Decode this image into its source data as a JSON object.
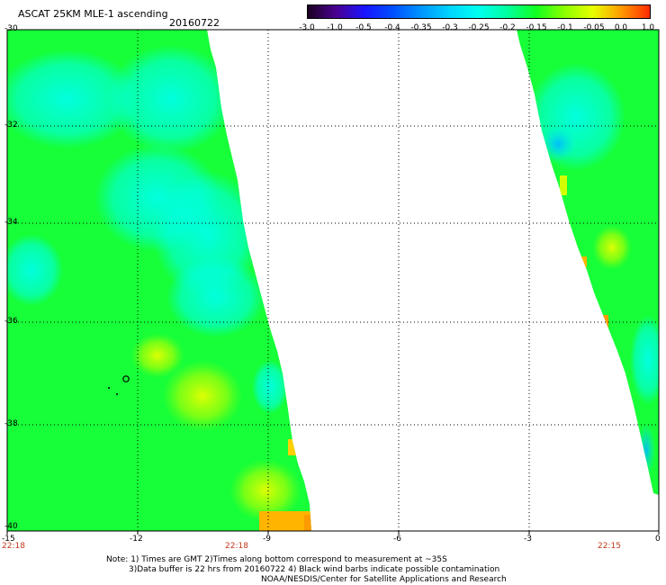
{
  "header": {
    "title": "ASCAT 25KM MLE-1 ascending",
    "date": "20160722"
  },
  "colorbar": {
    "tick_labels": [
      "-3.0",
      "-1.0",
      "-0.5",
      "-0.4",
      "-0.35",
      "-0.3",
      "-0.25",
      "-0.2",
      "-0.15",
      "-0.1",
      "-0.05",
      "0.0",
      "1.0"
    ],
    "colors": [
      "#1b0022",
      "#4a0090",
      "#1a14ff",
      "#0050ff",
      "#0096ff",
      "#00d6ff",
      "#00ffef",
      "#00ffa0",
      "#10ff20",
      "#8cff00",
      "#e8ff00",
      "#ff9a00",
      "#ff2a00"
    ]
  },
  "map": {
    "lat_labels": [
      "-30",
      "-32",
      "-34",
      "-36",
      "-38",
      "-40"
    ],
    "lon_labels": [
      "-15",
      "-12",
      "-9",
      "-6",
      "-3",
      "0"
    ],
    "gridlines": true,
    "swath_times": [
      "22:18",
      "22:18",
      "22:15"
    ],
    "colors": {
      "cyan": "#00ffe6",
      "green": "#12ff3a",
      "yellow": "#e4ff00",
      "orange": "#ff9a00"
    }
  },
  "footer": {
    "note_line1": "Note:  1) Times are GMT  2)Times along bottom correspond to measurement at ~35S",
    "note_line2": "3)Data buffer is 22 hrs from 20160722  4) Black wind barbs indicate possible contamination",
    "credit": "NOAA/NESDIS/Center for Satellite Applications and Research"
  }
}
